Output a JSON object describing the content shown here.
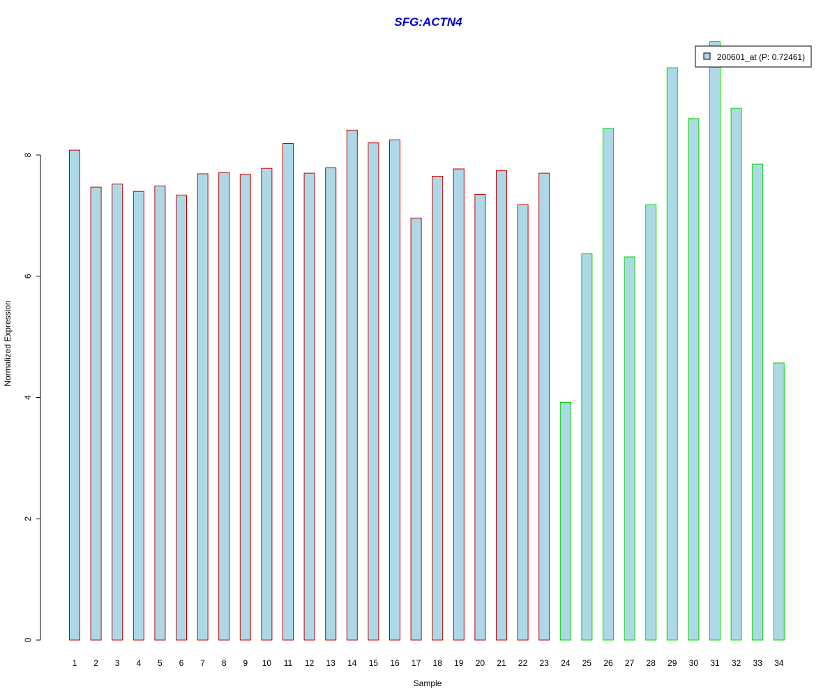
{
  "colors": {
    "title": "#0000cc",
    "bar_fill": "#add8e6",
    "group1_border": "#cc0000",
    "group2_border": "#00dd00",
    "axis": "#000000"
  },
  "chart_data": {
    "type": "bar",
    "title": "SFG:ACTN4",
    "xlabel": "Sample",
    "ylabel": "Normalized Expression",
    "ylim": [
      0,
      9.9
    ],
    "yticks": [
      0,
      2,
      4,
      6,
      8
    ],
    "grid": false,
    "legend": {
      "position": "top-right",
      "entries": [
        "200601_at (P: 0.72461)"
      ]
    },
    "categories": [
      "1",
      "2",
      "3",
      "4",
      "5",
      "6",
      "7",
      "8",
      "9",
      "10",
      "11",
      "12",
      "13",
      "14",
      "15",
      "16",
      "17",
      "18",
      "19",
      "20",
      "21",
      "22",
      "23",
      "24",
      "25",
      "26",
      "27",
      "28",
      "29",
      "30",
      "31",
      "32",
      "33",
      "34"
    ],
    "series": [
      {
        "name": "200601_at (P: 0.72461)",
        "values": [
          8.08,
          7.47,
          7.52,
          7.4,
          7.49,
          7.34,
          7.69,
          7.71,
          7.68,
          7.78,
          8.19,
          7.7,
          7.79,
          8.41,
          8.2,
          8.25,
          6.96,
          7.65,
          7.77,
          7.35,
          7.74,
          7.18,
          7.7,
          3.92,
          6.37,
          8.44,
          6.32,
          7.18,
          9.44,
          8.6,
          9.87,
          8.77,
          7.85,
          4.57
        ],
        "groups": [
          1,
          1,
          1,
          1,
          1,
          1,
          1,
          1,
          1,
          1,
          1,
          1,
          1,
          1,
          1,
          1,
          1,
          1,
          1,
          1,
          1,
          1,
          1,
          2,
          2,
          2,
          2,
          2,
          2,
          2,
          2,
          2,
          2,
          2
        ]
      }
    ]
  }
}
